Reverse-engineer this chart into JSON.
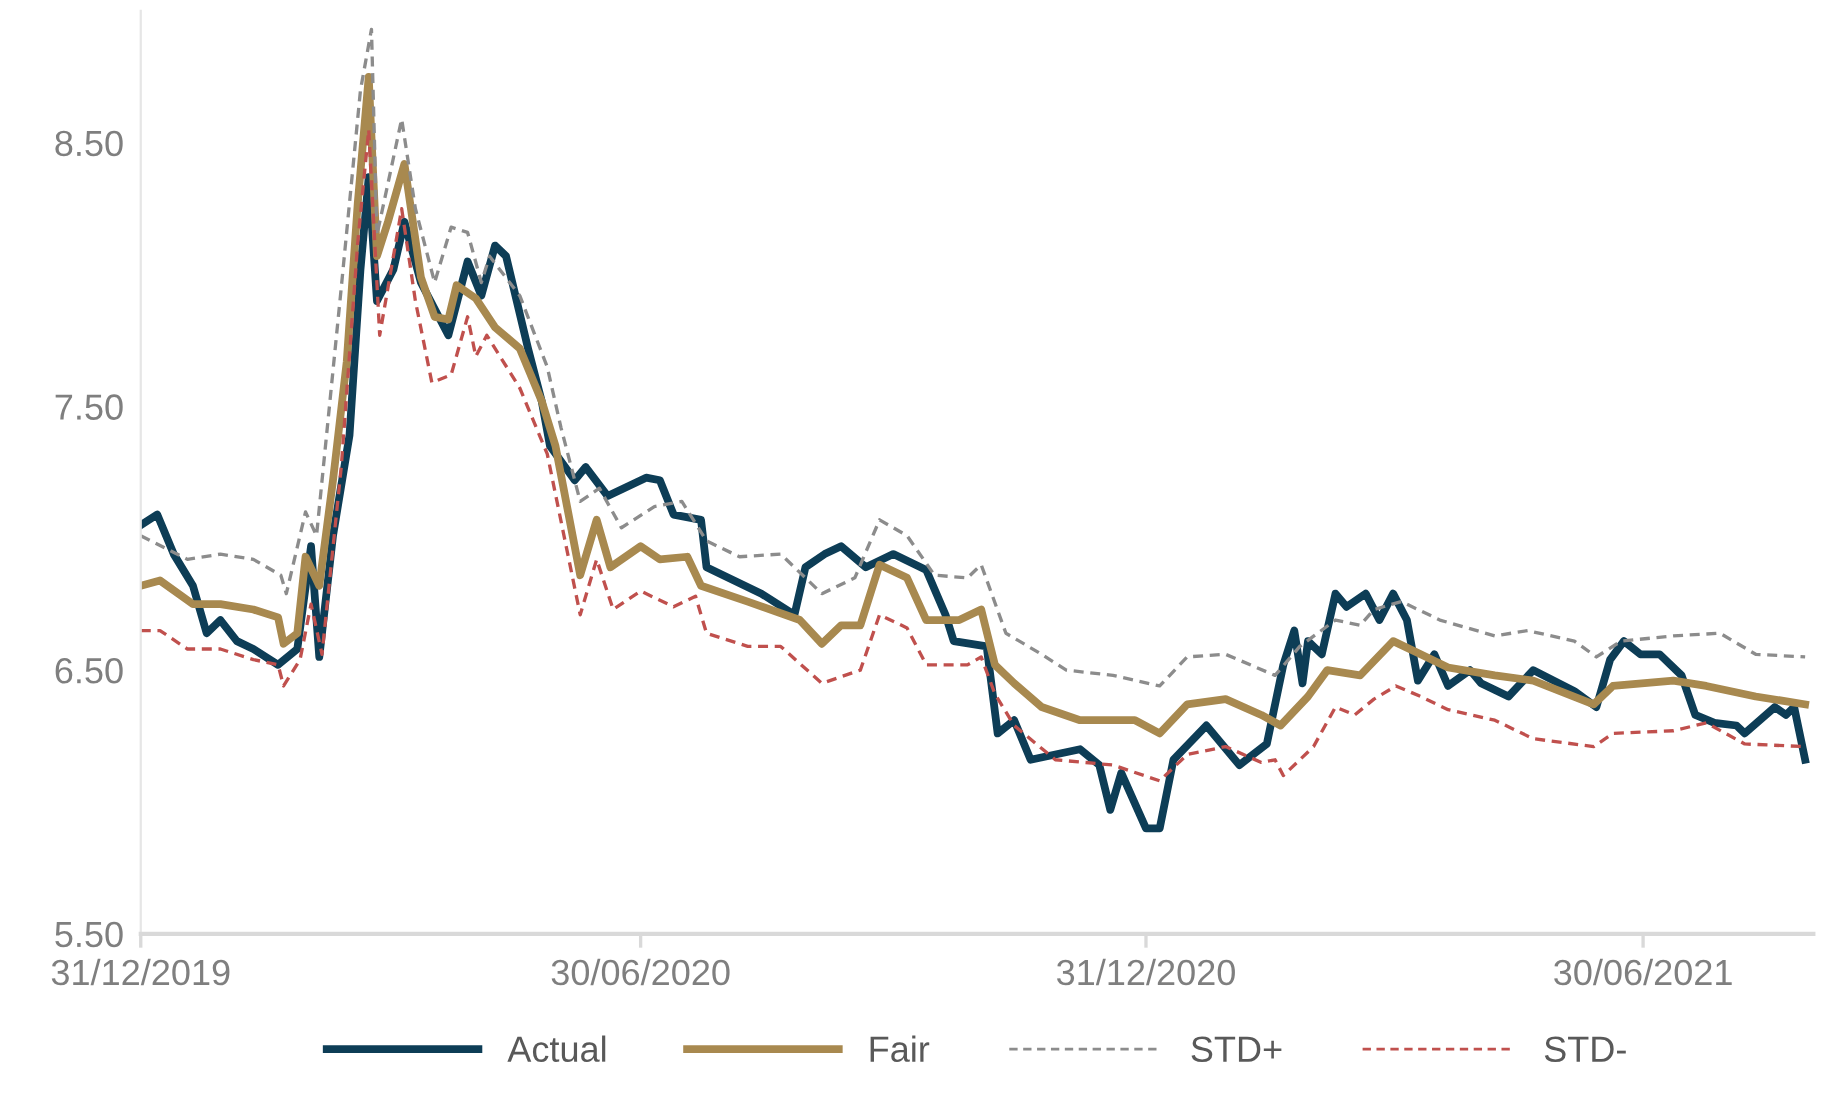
{
  "chart_data": {
    "type": "line",
    "xlim": [
      "2019-12-31",
      "2021-08-31"
    ],
    "xticks": [
      {
        "value": "2019-12-31",
        "label": "31/12/2019"
      },
      {
        "value": "2020-06-30",
        "label": "30/06/2020"
      },
      {
        "value": "2020-12-31",
        "label": "31/12/2020"
      },
      {
        "value": "2021-06-30",
        "label": "30/06/2021"
      }
    ],
    "ylim": [
      5.5,
      9.0
    ],
    "yticks": [
      {
        "value": 5.5,
        "label": "5.50"
      },
      {
        "value": 6.5,
        "label": "6.50"
      },
      {
        "value": 7.5,
        "label": "7.50"
      },
      {
        "value": 8.5,
        "label": "8.50"
      }
    ],
    "grid": false,
    "legend": "bottom",
    "marker": "none",
    "series": [
      {
        "name": "Actual",
        "color": "#0d3d56",
        "line_style": "solid",
        "x": [
          "2019-12-31",
          "2020-01-06",
          "2020-01-12",
          "2020-01-19",
          "2020-01-24",
          "2020-01-29",
          "2020-02-04",
          "2020-02-10",
          "2020-02-19",
          "2020-02-26",
          "2020-03-02",
          "2020-03-05",
          "2020-03-10",
          "2020-03-16",
          "2020-03-20",
          "2020-03-23",
          "2020-03-26",
          "2020-04-01",
          "2020-04-05",
          "2020-04-11",
          "2020-04-21",
          "2020-04-28",
          "2020-05-03",
          "2020-05-08",
          "2020-05-12",
          "2020-05-20",
          "2020-05-25",
          "2020-05-28",
          "2020-06-06",
          "2020-06-10",
          "2020-06-18",
          "2020-07-02",
          "2020-07-07",
          "2020-07-12",
          "2020-07-22",
          "2020-07-24",
          "2020-08-03",
          "2020-08-13",
          "2020-08-25",
          "2020-08-29",
          "2020-09-05",
          "2020-09-11",
          "2020-09-20",
          "2020-09-30",
          "2020-10-12",
          "2020-10-19",
          "2020-10-22",
          "2020-11-03",
          "2020-11-07",
          "2020-11-13",
          "2020-11-19",
          "2020-11-28",
          "2020-12-07",
          "2020-12-14",
          "2020-12-18",
          "2020-12-22",
          "2020-12-31",
          "2021-01-05",
          "2021-01-10",
          "2021-01-22",
          "2021-02-03",
          "2021-02-13",
          "2021-02-19",
          "2021-02-23",
          "2021-02-26",
          "2021-02-28",
          "2021-03-05",
          "2021-03-10",
          "2021-03-14",
          "2021-03-21",
          "2021-03-26",
          "2021-03-31",
          "2021-04-05",
          "2021-04-09",
          "2021-04-15",
          "2021-04-20",
          "2021-04-28",
          "2021-05-02",
          "2021-05-12",
          "2021-05-21",
          "2021-06-05",
          "2021-06-13",
          "2021-06-18",
          "2021-06-23",
          "2021-06-29",
          "2021-07-06",
          "2021-07-14",
          "2021-07-19",
          "2021-07-26",
          "2021-08-03",
          "2021-08-06",
          "2021-08-17",
          "2021-08-21",
          "2021-08-24",
          "2021-08-28"
        ],
        "values": [
          7.05,
          7.09,
          6.94,
          6.82,
          6.64,
          6.69,
          6.61,
          6.58,
          6.52,
          6.58,
          6.97,
          6.55,
          7.01,
          7.39,
          8.02,
          8.37,
          7.9,
          8.02,
          8.2,
          7.97,
          7.77,
          8.05,
          7.92,
          8.11,
          8.07,
          7.72,
          7.52,
          7.35,
          7.22,
          7.27,
          7.16,
          7.23,
          7.22,
          7.09,
          7.07,
          6.89,
          6.84,
          6.79,
          6.71,
          6.89,
          6.94,
          6.97,
          6.89,
          6.94,
          6.88,
          6.71,
          6.61,
          6.59,
          6.26,
          6.31,
          6.16,
          6.18,
          6.2,
          6.14,
          5.97,
          6.11,
          5.9,
          5.9,
          6.16,
          6.29,
          6.14,
          6.22,
          6.52,
          6.65,
          6.45,
          6.61,
          6.56,
          6.79,
          6.74,
          6.79,
          6.69,
          6.79,
          6.69,
          6.46,
          6.56,
          6.44,
          6.5,
          6.45,
          6.4,
          6.5,
          6.42,
          6.36,
          6.54,
          6.61,
          6.56,
          6.56,
          6.48,
          6.33,
          6.3,
          6.29,
          6.26,
          6.36,
          6.33,
          6.36,
          6.16
        ]
      },
      {
        "name": "Fair",
        "color": "#a8894f",
        "line_style": "solid",
        "x": [
          "2019-12-31",
          "2020-01-07",
          "2020-01-19",
          "2020-01-29",
          "2020-02-10",
          "2020-02-19",
          "2020-02-21",
          "2020-02-26",
          "2020-02-29",
          "2020-03-05",
          "2020-03-10",
          "2020-03-15",
          "2020-03-19",
          "2020-03-23",
          "2020-03-26",
          "2020-03-30",
          "2020-04-05",
          "2020-04-11",
          "2020-04-16",
          "2020-04-21",
          "2020-04-24",
          "2020-05-01",
          "2020-05-08",
          "2020-05-17",
          "2020-05-25",
          "2020-05-30",
          "2020-06-08",
          "2020-06-14",
          "2020-06-19",
          "2020-06-30",
          "2020-07-07",
          "2020-07-17",
          "2020-07-22",
          "2020-08-08",
          "2020-08-27",
          "2020-09-04",
          "2020-09-11",
          "2020-09-18",
          "2020-09-25",
          "2020-10-05",
          "2020-10-12",
          "2020-10-24",
          "2020-11-01",
          "2020-11-06",
          "2020-11-13",
          "2020-11-23",
          "2020-12-07",
          "2020-12-27",
          "2021-01-05",
          "2021-01-15",
          "2021-01-29",
          "2021-02-11",
          "2021-02-18",
          "2021-02-28",
          "2021-03-07",
          "2021-03-19",
          "2021-03-31",
          "2021-04-10",
          "2021-04-20",
          "2021-05-07",
          "2021-05-21",
          "2021-06-12",
          "2021-06-19",
          "2021-07-11",
          "2021-07-23",
          "2021-08-10",
          "2021-08-28"
        ],
        "values": [
          6.82,
          6.84,
          6.75,
          6.75,
          6.73,
          6.7,
          6.6,
          6.64,
          6.93,
          6.82,
          7.22,
          7.67,
          8.27,
          8.75,
          8.07,
          8.2,
          8.42,
          7.99,
          7.84,
          7.83,
          7.96,
          7.91,
          7.8,
          7.72,
          7.52,
          7.35,
          6.86,
          7.07,
          6.89,
          6.97,
          6.92,
          6.93,
          6.82,
          6.76,
          6.69,
          6.6,
          6.67,
          6.67,
          6.9,
          6.85,
          6.69,
          6.69,
          6.73,
          6.52,
          6.45,
          6.36,
          6.31,
          6.31,
          6.26,
          6.37,
          6.39,
          6.33,
          6.29,
          6.4,
          6.5,
          6.48,
          6.61,
          6.56,
          6.51,
          6.48,
          6.46,
          6.37,
          6.44,
          6.46,
          6.44,
          6.4,
          6.37
        ]
      },
      {
        "name": "STD+",
        "color": "#8c8c8c",
        "line_style": "dashed",
        "x": [
          "2019-12-31",
          "2020-01-17",
          "2020-01-29",
          "2020-02-10",
          "2020-02-20",
          "2020-02-22",
          "2020-02-29",
          "2020-03-04",
          "2020-03-13",
          "2020-03-20",
          "2020-03-24",
          "2020-03-26",
          "2020-04-04",
          "2020-04-09",
          "2020-04-16",
          "2020-04-22",
          "2020-04-28",
          "2020-05-03",
          "2020-05-06",
          "2020-05-17",
          "2020-05-27",
          "2020-06-01",
          "2020-06-08",
          "2020-06-15",
          "2020-06-23",
          "2020-07-05",
          "2020-07-15",
          "2020-07-24",
          "2020-08-05",
          "2020-08-20",
          "2020-09-04",
          "2020-09-16",
          "2020-09-25",
          "2020-10-05",
          "2020-10-15",
          "2020-10-27",
          "2020-11-01",
          "2020-11-10",
          "2020-11-23",
          "2020-12-02",
          "2020-12-19",
          "2021-01-05",
          "2021-01-15",
          "2021-01-29",
          "2021-02-16",
          "2021-02-25",
          "2021-03-10",
          "2021-03-19",
          "2021-03-24",
          "2021-04-03",
          "2021-04-17",
          "2021-05-07",
          "2021-05-19",
          "2021-06-05",
          "2021-06-13",
          "2021-06-22",
          "2021-07-11",
          "2021-07-28",
          "2021-08-10",
          "2021-08-28"
        ],
        "values": [
          7.01,
          6.92,
          6.94,
          6.92,
          6.86,
          6.79,
          7.1,
          7.01,
          7.95,
          8.7,
          8.93,
          8.15,
          8.59,
          8.25,
          7.97,
          8.18,
          8.16,
          7.97,
          8.07,
          7.92,
          7.65,
          7.42,
          7.14,
          7.19,
          7.04,
          7.12,
          7.14,
          6.99,
          6.93,
          6.94,
          6.79,
          6.85,
          7.07,
          7.01,
          6.86,
          6.85,
          6.9,
          6.64,
          6.56,
          6.5,
          6.48,
          6.44,
          6.55,
          6.56,
          6.48,
          6.59,
          6.69,
          6.67,
          6.73,
          6.76,
          6.69,
          6.63,
          6.65,
          6.61,
          6.55,
          6.61,
          6.63,
          6.64,
          6.56,
          6.55
        ]
      },
      {
        "name": "STD-",
        "color": "#c0504d",
        "line_style": "dashed",
        "x": [
          "2019-12-31",
          "2020-01-07",
          "2020-01-17",
          "2020-01-29",
          "2020-02-10",
          "2020-02-19",
          "2020-02-21",
          "2020-02-27",
          "2020-03-02",
          "2020-03-06",
          "2020-03-13",
          "2020-03-19",
          "2020-03-23",
          "2020-03-27",
          "2020-04-04",
          "2020-04-09",
          "2020-04-15",
          "2020-04-22",
          "2020-04-28",
          "2020-05-01",
          "2020-05-05",
          "2020-05-17",
          "2020-05-27",
          "2020-06-08",
          "2020-06-14",
          "2020-06-20",
          "2020-06-30",
          "2020-07-12",
          "2020-07-20",
          "2020-07-24",
          "2020-08-08",
          "2020-08-20",
          "2020-09-04",
          "2020-09-18",
          "2020-09-25",
          "2020-10-05",
          "2020-10-12",
          "2020-10-27",
          "2020-11-01",
          "2020-11-06",
          "2020-11-13",
          "2020-11-28",
          "2020-12-19",
          "2021-01-05",
          "2021-01-15",
          "2021-01-29",
          "2021-02-11",
          "2021-02-16",
          "2021-02-19",
          "2021-03-02",
          "2021-03-10",
          "2021-03-17",
          "2021-03-24",
          "2021-04-01",
          "2021-04-10",
          "2021-04-20",
          "2021-05-07",
          "2021-05-21",
          "2021-06-12",
          "2021-06-19",
          "2021-07-11",
          "2021-07-23",
          "2021-08-06",
          "2021-08-28"
        ],
        "values": [
          6.65,
          6.65,
          6.58,
          6.58,
          6.54,
          6.52,
          6.44,
          6.54,
          6.75,
          6.56,
          7.27,
          8.12,
          8.55,
          7.77,
          8.25,
          7.9,
          7.59,
          7.62,
          7.84,
          7.69,
          7.77,
          7.57,
          7.32,
          6.71,
          6.92,
          6.73,
          6.8,
          6.74,
          6.78,
          6.64,
          6.59,
          6.59,
          6.45,
          6.5,
          6.71,
          6.66,
          6.52,
          6.52,
          6.55,
          6.41,
          6.29,
          6.16,
          6.14,
          6.08,
          6.18,
          6.21,
          6.15,
          6.16,
          6.1,
          6.21,
          6.36,
          6.33,
          6.39,
          6.44,
          6.4,
          6.35,
          6.31,
          6.24,
          6.21,
          6.26,
          6.27,
          6.3,
          6.22,
          6.21
        ]
      }
    ]
  }
}
